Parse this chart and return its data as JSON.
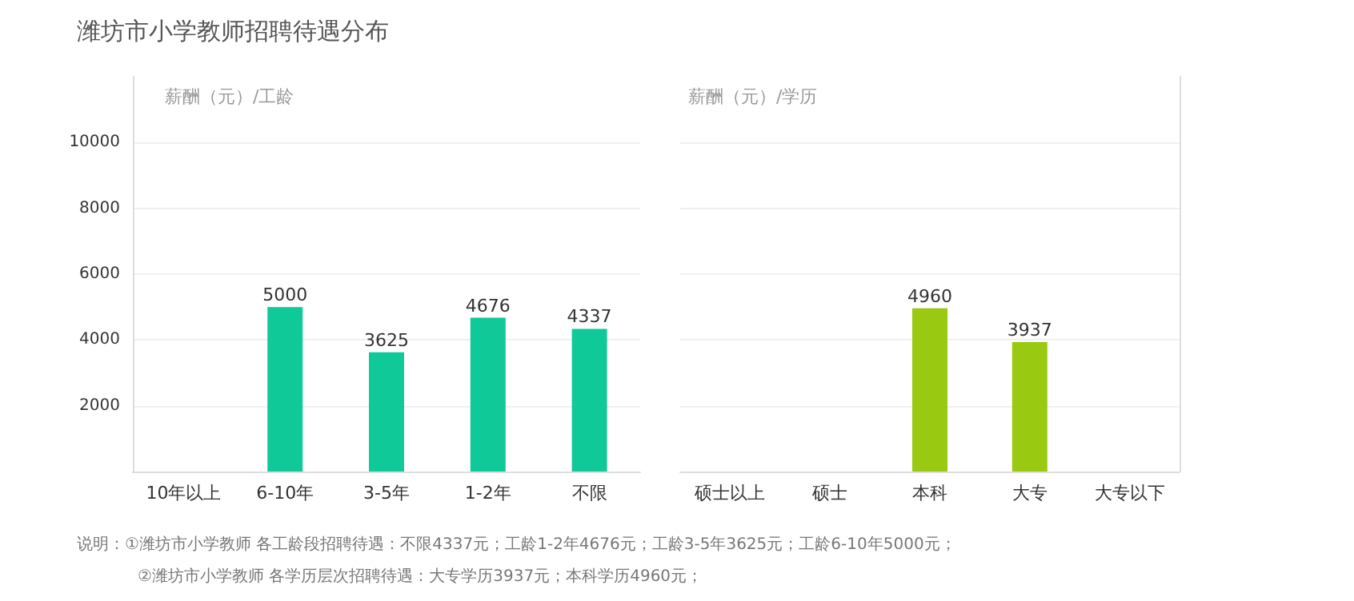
{
  "chart_data": [
    {
      "type": "bar",
      "title": "潍坊市小学教师招聘待遇分布",
      "ylabel": "薪酬（元）/工龄",
      "categories": [
        "10年以上",
        "6-10年",
        "3-5年",
        "1-2年",
        "不限"
      ],
      "values": [
        null,
        5000,
        3625,
        4676,
        4337
      ],
      "color": "#0fc999",
      "ylim": [
        0,
        12000
      ],
      "yticks": [
        2000,
        4000,
        6000,
        8000,
        10000
      ],
      "grid": "y",
      "data_labels": true,
      "annotations": [
        "说明：①潍坊市小学教师 各工龄段招聘待遇：不限4337元；工龄1-2年4676元；工龄3-5年3625元；工龄6-10年5000元；",
        "②潍坊市小学教师 各学历层次招聘待遇：大专学历3937元；本科学历4960元；"
      ]
    },
    {
      "type": "bar",
      "ylabel": "薪酬（元）/学历",
      "categories": [
        "硕士以上",
        "硕士",
        "本科",
        "大专",
        "大专以下"
      ],
      "values": [
        null,
        null,
        4960,
        3937,
        null
      ],
      "color": "#99c910",
      "ylim": [
        0,
        12000
      ],
      "yticks": [
        2000,
        4000,
        6000,
        8000,
        10000
      ],
      "grid": "y",
      "data_labels": true,
      "tick_labels": "x"
    }
  ]
}
